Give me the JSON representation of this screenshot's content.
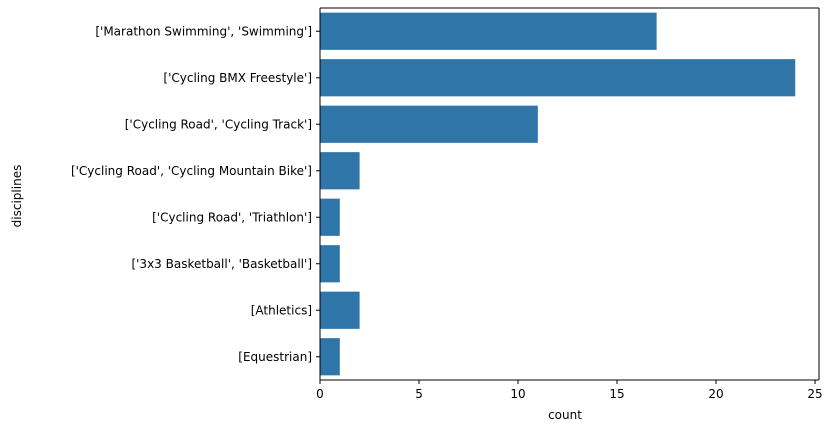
{
  "chart_data": {
    "type": "bar",
    "orientation": "horizontal",
    "xlabel": "count",
    "ylabel": "disciplines",
    "xlim": [
      0,
      25.2
    ],
    "x_ticks": [
      0,
      5,
      10,
      15,
      20,
      25
    ],
    "grid": false,
    "bar_color": "#2f75a8",
    "categories": [
      "['Marathon Swimming', 'Swimming']",
      "['Cycling BMX Freestyle']",
      "['Cycling Road', 'Cycling Track']",
      "['Cycling Road', 'Cycling Mountain Bike']",
      "['Cycling Road', 'Triathlon']",
      "['3x3 Basketball', 'Basketball']",
      "[Athletics]",
      "[Equestrian]"
    ],
    "values": [
      17,
      24,
      11,
      2,
      1,
      1,
      2,
      1
    ]
  }
}
